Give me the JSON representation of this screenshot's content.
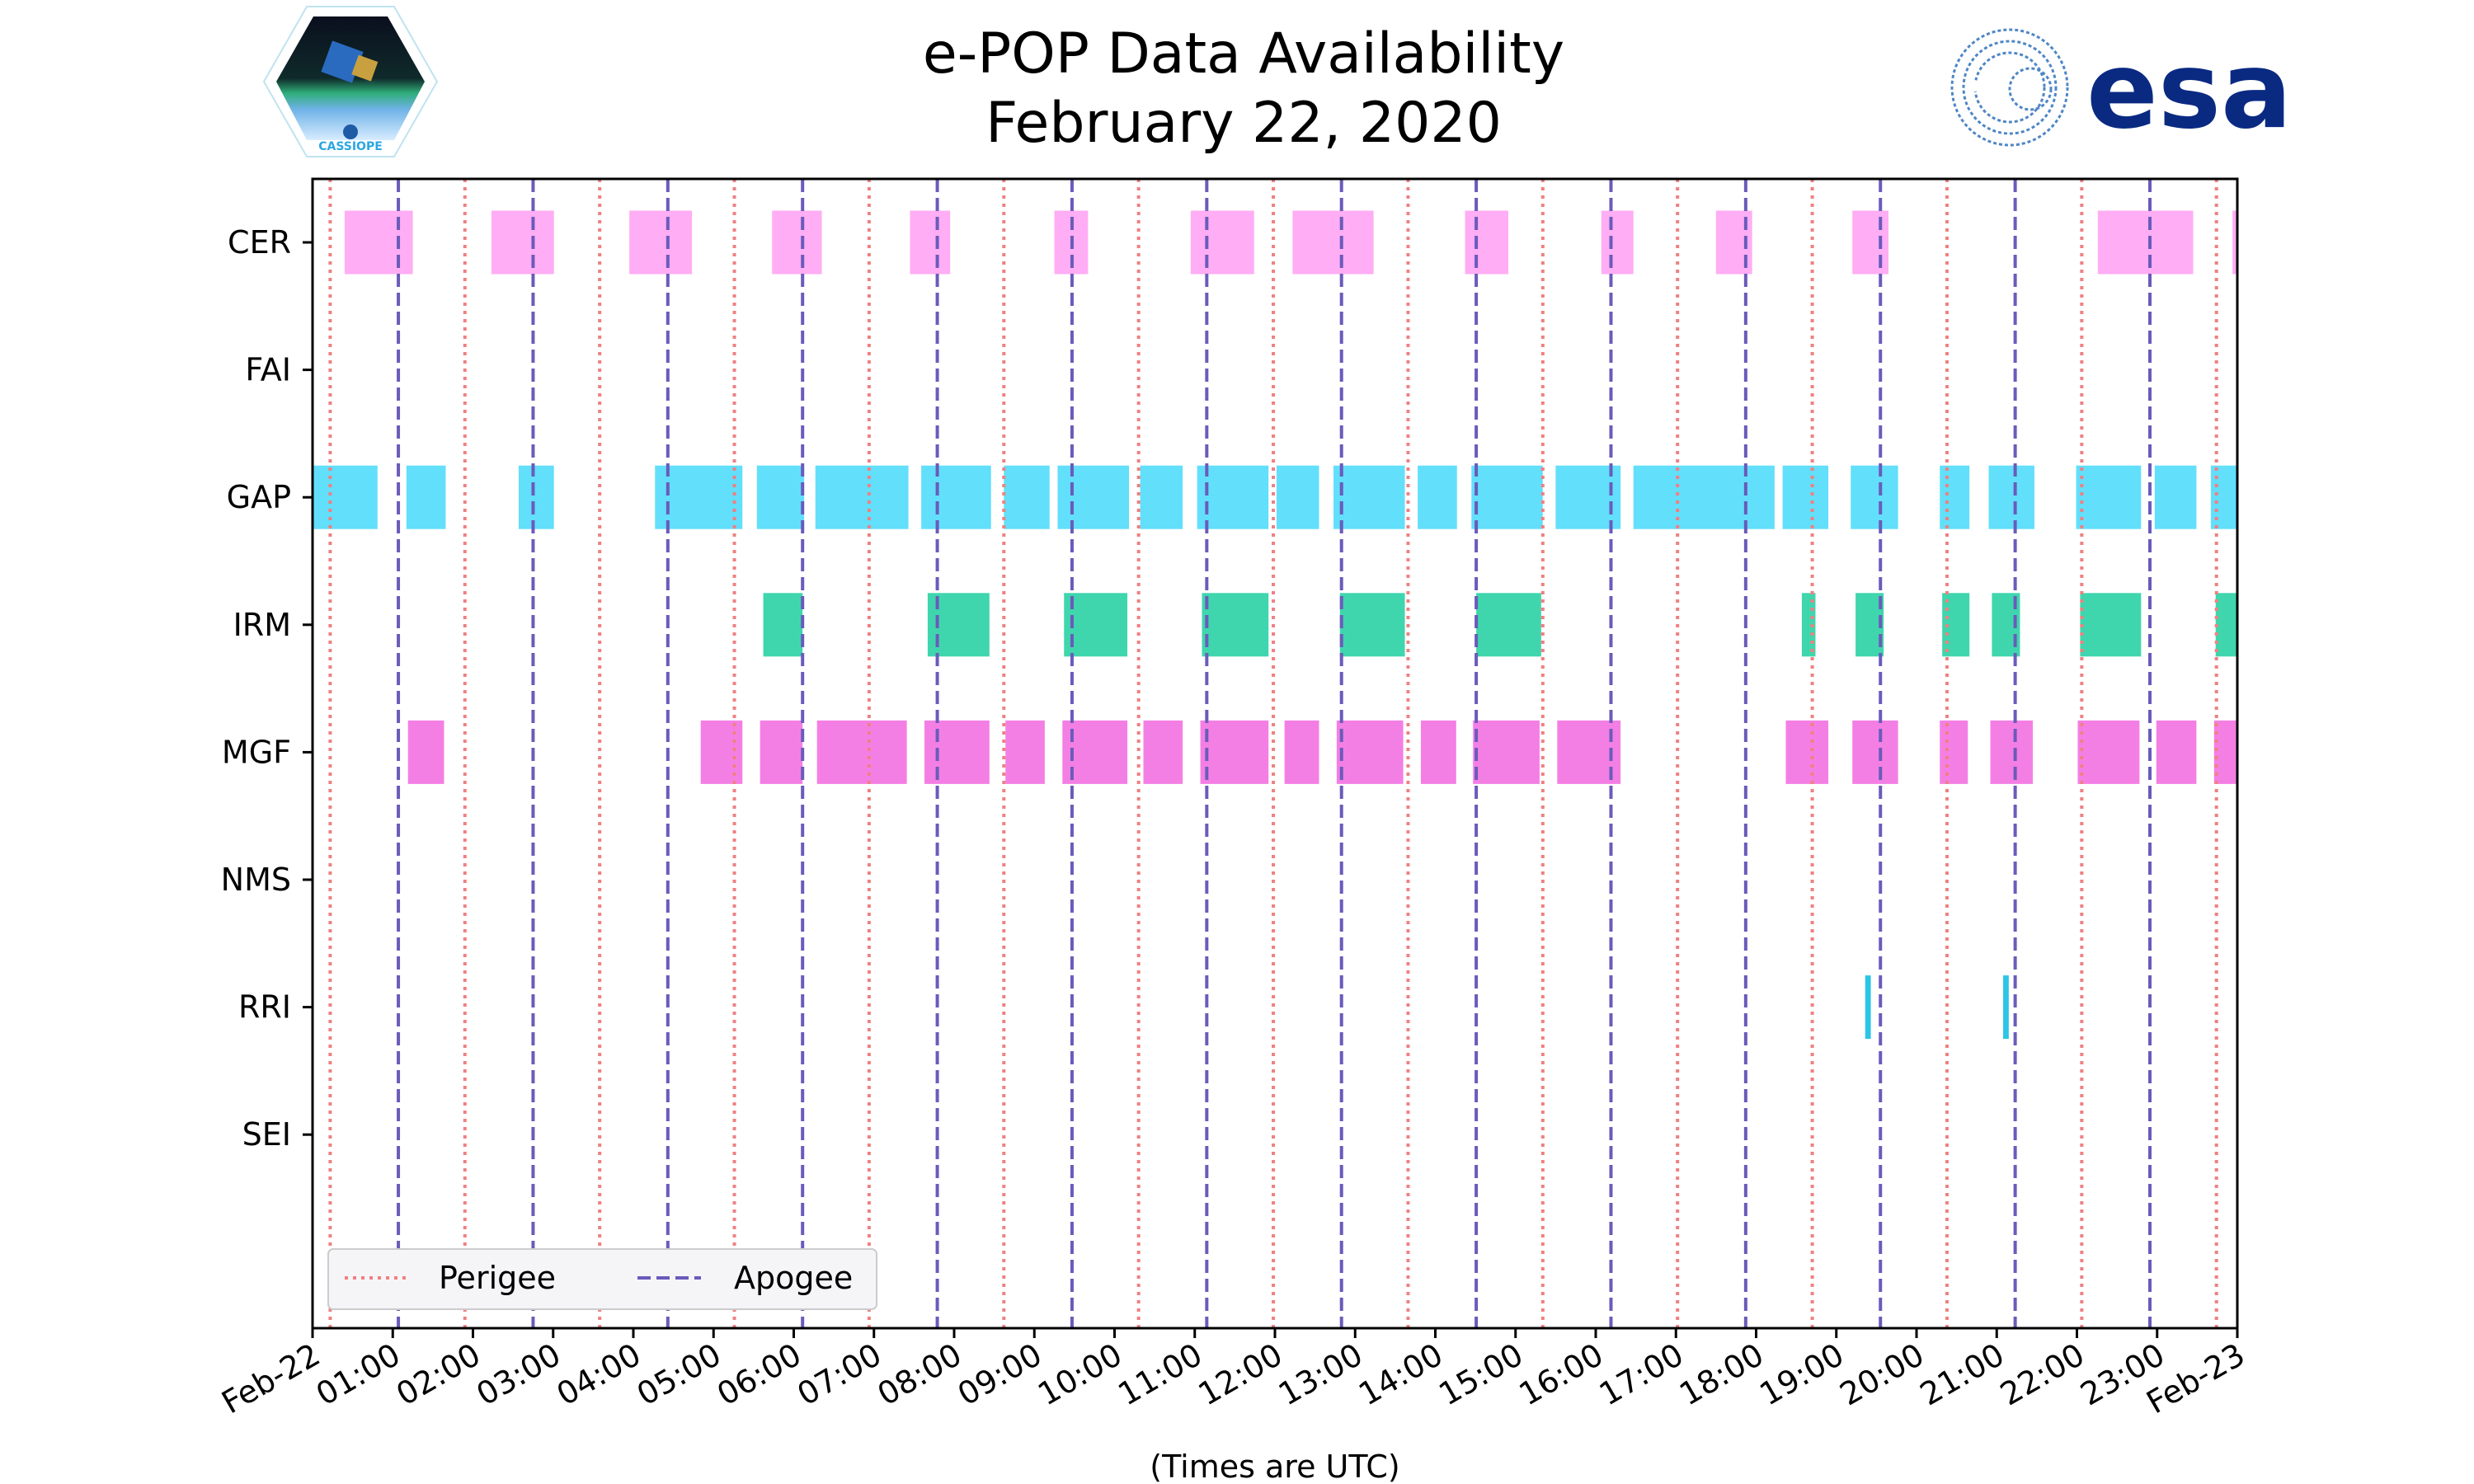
{
  "logos": {
    "left": {
      "text": "CASSIOPE"
    },
    "right": {
      "text": "esa"
    }
  },
  "chart_data": {
    "type": "timeline",
    "title": [
      "e-POP Data Availability",
      "February 22, 2020"
    ],
    "xlabel": "(Times are UTC)",
    "xlim_hours": [
      0,
      24
    ],
    "xtick_labels": [
      "Feb-22",
      "01:00",
      "02:00",
      "03:00",
      "04:00",
      "05:00",
      "06:00",
      "07:00",
      "08:00",
      "09:00",
      "10:00",
      "11:00",
      "12:00",
      "13:00",
      "14:00",
      "15:00",
      "16:00",
      "17:00",
      "18:00",
      "19:00",
      "20:00",
      "21:00",
      "22:00",
      "23:00",
      "Feb-23"
    ],
    "instruments": [
      "CER",
      "FAI",
      "GAP",
      "IRM",
      "MGF",
      "NMS",
      "RRI",
      "SEI"
    ],
    "colors": {
      "CER": "#ffadf4",
      "GAP": "#62dffb",
      "IRM": "#3fd6ad",
      "MGF": "#f47fe4",
      "RRI": "#2ec4e6",
      "perigee": "#f08080",
      "apogee": "#6a5bbb"
    },
    "intervals_hours": {
      "CER": [
        [
          0.4,
          1.25
        ],
        [
          2.23,
          3.01
        ],
        [
          3.95,
          4.73
        ],
        [
          5.73,
          6.35
        ],
        [
          7.45,
          7.95
        ],
        [
          9.25,
          9.67
        ],
        [
          10.95,
          11.74
        ],
        [
          12.22,
          13.23
        ],
        [
          14.37,
          14.91
        ],
        [
          16.07,
          16.47
        ],
        [
          17.5,
          17.95
        ],
        [
          19.2,
          19.65
        ],
        [
          22.26,
          23.45
        ],
        [
          23.94,
          24.0
        ]
      ],
      "FAI": [],
      "GAP": [
        [
          0.0,
          0.81
        ],
        [
          1.17,
          1.66
        ],
        [
          2.57,
          3.01
        ],
        [
          4.27,
          5.36
        ],
        [
          5.54,
          6.13
        ],
        [
          6.27,
          7.43
        ],
        [
          7.59,
          8.46
        ],
        [
          8.62,
          9.19
        ],
        [
          9.29,
          10.18
        ],
        [
          10.32,
          10.85
        ],
        [
          11.03,
          11.92
        ],
        [
          12.02,
          12.55
        ],
        [
          12.73,
          13.62
        ],
        [
          13.78,
          14.27
        ],
        [
          14.45,
          15.34
        ],
        [
          15.5,
          16.31
        ],
        [
          16.47,
          18.23
        ],
        [
          18.33,
          18.9
        ],
        [
          19.18,
          19.77
        ],
        [
          20.29,
          20.66
        ],
        [
          20.9,
          21.47
        ],
        [
          21.99,
          22.8
        ],
        [
          22.97,
          23.49
        ],
        [
          23.67,
          24.0
        ]
      ],
      "IRM": [
        [
          5.62,
          6.11
        ],
        [
          7.67,
          8.44
        ],
        [
          9.37,
          10.16
        ],
        [
          11.09,
          11.92
        ],
        [
          12.81,
          13.62
        ],
        [
          14.51,
          15.32
        ],
        [
          18.57,
          18.74
        ],
        [
          19.24,
          19.59
        ],
        [
          20.32,
          20.66
        ],
        [
          20.94,
          21.29
        ],
        [
          22.04,
          22.8
        ],
        [
          23.73,
          24.0
        ]
      ],
      "MGF": [
        [
          1.19,
          1.64
        ],
        [
          4.84,
          5.36
        ],
        [
          5.58,
          6.11
        ],
        [
          6.29,
          7.41
        ],
        [
          7.63,
          8.44
        ],
        [
          8.64,
          9.13
        ],
        [
          9.35,
          10.16
        ],
        [
          10.36,
          10.85
        ],
        [
          11.07,
          11.92
        ],
        [
          12.12,
          12.55
        ],
        [
          12.77,
          13.6
        ],
        [
          13.82,
          14.26
        ],
        [
          14.47,
          15.3
        ],
        [
          15.52,
          16.31
        ],
        [
          18.37,
          18.9
        ],
        [
          19.2,
          19.77
        ],
        [
          20.29,
          20.64
        ],
        [
          20.92,
          21.45
        ],
        [
          22.01,
          22.78
        ],
        [
          22.99,
          23.49
        ],
        [
          23.71,
          24.0
        ]
      ],
      "NMS": [],
      "RRI": [
        [
          19.36,
          19.43
        ],
        [
          21.08,
          21.15
        ]
      ],
      "SEI": []
    },
    "perigee_hours": [
      0.22,
      1.9,
      3.58,
      5.26,
      6.94,
      8.62,
      10.3,
      11.98,
      13.66,
      15.34,
      17.02,
      18.7,
      20.38,
      22.06,
      23.74
    ],
    "apogee_hours": [
      1.07,
      2.75,
      4.43,
      6.11,
      7.79,
      9.47,
      11.15,
      12.83,
      14.51,
      16.19,
      17.87,
      19.55,
      21.23,
      22.91
    ],
    "legend": {
      "placement": "lower-left",
      "entries": [
        "Perigee",
        "Apogee"
      ]
    }
  }
}
